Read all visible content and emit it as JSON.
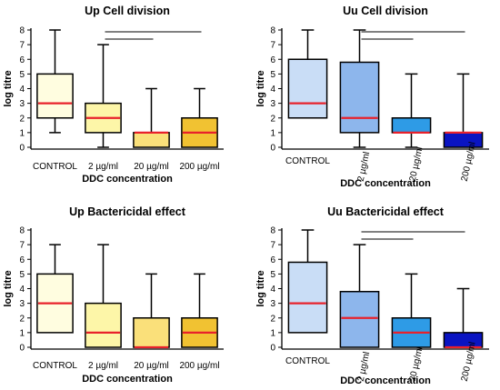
{
  "chart_data": [
    {
      "type": "box",
      "title": "Up Cell division",
      "xlabel": "DDC concentration",
      "ylabel": "log titre",
      "ylim": [
        0,
        8
      ],
      "yticks": [
        "0",
        "1",
        "2",
        "3",
        "4",
        "5",
        "6",
        "7",
        "8"
      ],
      "categories": [
        "CONTROL",
        "2 µg/ml",
        "20 µg/ml",
        "200 µg/ml"
      ],
      "category_label_rotation": "horizontal",
      "boxes": [
        {
          "min": 1,
          "q1": 2,
          "median": 3,
          "q3": 5,
          "max": 8,
          "fill": "#FFFDE0"
        },
        {
          "min": 0,
          "q1": 1,
          "median": 2,
          "q3": 3,
          "max": 7,
          "fill": "#FDF6A8"
        },
        {
          "min": 0,
          "q1": 0,
          "median": 1,
          "q3": 1,
          "max": 4,
          "fill": "#FAE07A"
        },
        {
          "min": 0,
          "q1": 0,
          "median": 1,
          "q3": 2,
          "max": 4,
          "fill": "#F1C232"
        }
      ],
      "significance_lines": [
        {
          "from": 1,
          "to": 2,
          "level": 1
        },
        {
          "from": 1,
          "to": 3,
          "level": 2
        }
      ]
    },
    {
      "type": "box",
      "title": "Uu Cell division",
      "xlabel": "DDC concentration",
      "ylabel": "log titre",
      "ylim": [
        0,
        8
      ],
      "yticks": [
        "0",
        "1",
        "2",
        "3",
        "4",
        "5",
        "6",
        "7",
        "8"
      ],
      "categories": [
        "CONTROL",
        "2 µg/ml",
        "20 µg/ml",
        "200 µg/ml"
      ],
      "category_label_rotation": "angled",
      "boxes": [
        {
          "min": 2,
          "q1": 2,
          "median": 3,
          "q3": 6,
          "max": 8,
          "fill": "#C9DDF6"
        },
        {
          "min": 0,
          "q1": 1,
          "median": 2,
          "q3": 5.8,
          "max": 8,
          "fill": "#8DB6EC"
        },
        {
          "min": 0,
          "q1": 1,
          "median": 1,
          "q3": 2,
          "max": 5,
          "fill": "#2E9BE6"
        },
        {
          "min": 0,
          "q1": 0,
          "median": 1,
          "q3": 1,
          "max": 5,
          "fill": "#0A14C2"
        }
      ],
      "significance_lines": [
        {
          "from": 1,
          "to": 2,
          "level": 1
        },
        {
          "from": 1,
          "to": 3,
          "level": 2
        }
      ]
    },
    {
      "type": "box",
      "title": "Up Bactericidal effect",
      "xlabel": "DDC concentration",
      "ylabel": "log titre",
      "ylim": [
        0,
        8
      ],
      "yticks": [
        "0",
        "1",
        "2",
        "3",
        "4",
        "5",
        "6",
        "7",
        "8"
      ],
      "categories": [
        "CONTROL",
        "2 µg/ml",
        "20 µg/ml",
        "200 µg/ml"
      ],
      "category_label_rotation": "horizontal",
      "boxes": [
        {
          "min": 1,
          "q1": 1,
          "median": 3,
          "q3": 5,
          "max": 7,
          "fill": "#FFFDE0"
        },
        {
          "min": 0,
          "q1": 0,
          "median": 1,
          "q3": 3,
          "max": 7,
          "fill": "#FDF6A8"
        },
        {
          "min": 0,
          "q1": 0,
          "median": 0,
          "q3": 2,
          "max": 5,
          "fill": "#FAE07A"
        },
        {
          "min": 0,
          "q1": 0,
          "median": 1,
          "q3": 2,
          "max": 5,
          "fill": "#F1C232"
        }
      ],
      "significance_lines": []
    },
    {
      "type": "box",
      "title": "Uu Bactericidal effect",
      "xlabel": "DDC concentration",
      "ylabel": "log titre",
      "ylim": [
        0,
        8
      ],
      "yticks": [
        "0",
        "1",
        "2",
        "3",
        "4",
        "5",
        "6",
        "7",
        "8"
      ],
      "categories": [
        "CONTROL",
        "2 µg/ml",
        "20 µg/ml",
        "200 µg/ml"
      ],
      "category_label_rotation": "angled",
      "boxes": [
        {
          "min": 1,
          "q1": 1,
          "median": 3,
          "q3": 5.8,
          "max": 8,
          "fill": "#C9DDF6"
        },
        {
          "min": 0,
          "q1": 0,
          "median": 2,
          "q3": 3.8,
          "max": 7,
          "fill": "#8DB6EC"
        },
        {
          "min": 0,
          "q1": 0,
          "median": 1,
          "q3": 2,
          "max": 5,
          "fill": "#2E9BE6"
        },
        {
          "min": 0,
          "q1": 0,
          "median": 0,
          "q3": 1,
          "max": 4,
          "fill": "#0A14C2"
        }
      ],
      "significance_lines": [
        {
          "from": 1,
          "to": 2,
          "level": 1
        },
        {
          "from": 1,
          "to": 3,
          "level": 2
        }
      ]
    }
  ],
  "colors": {
    "median": "#E8212B",
    "outline": "#000000"
  }
}
